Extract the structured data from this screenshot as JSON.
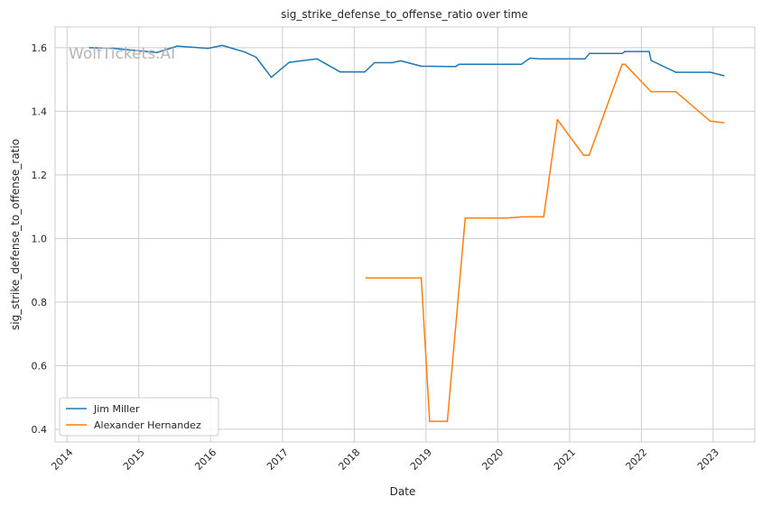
{
  "watermark": "WolfTickets.AI",
  "chart_data": {
    "type": "line",
    "title": "sig_strike_defense_to_offense_ratio over time",
    "xlabel": "Date",
    "ylabel": "sig_strike_defense_to_offense_ratio",
    "xlim": [
      "2013-11-01",
      "2023-08-01"
    ],
    "ylim": [
      0.36,
      1.665
    ],
    "x_ticks": [
      "2014",
      "2015",
      "2016",
      "2017",
      "2018",
      "2019",
      "2020",
      "2021",
      "2022",
      "2023"
    ],
    "y_ticks": [
      0.4,
      0.6,
      0.8,
      1.0,
      1.2,
      1.4,
      1.6
    ],
    "y_tick_labels": [
      "0.4",
      "0.6",
      "0.8",
      "1.0",
      "1.2",
      "1.4",
      "1.6"
    ],
    "grid": true,
    "legend_position": "lower-left",
    "series": [
      {
        "name": "Jim Miller",
        "color": "#1f77b4",
        "points": [
          [
            "2014-04-26",
            1.6
          ],
          [
            "2014-08-23",
            1.598
          ],
          [
            "2015-04-04",
            1.585
          ],
          [
            "2015-07-15",
            1.605
          ],
          [
            "2015-12-19",
            1.598
          ],
          [
            "2016-03-01",
            1.607
          ],
          [
            "2016-06-25",
            1.586
          ],
          [
            "2016-08-20",
            1.57
          ],
          [
            "2016-11-05",
            1.507
          ],
          [
            "2017-02-04",
            1.554
          ],
          [
            "2017-06-25",
            1.565
          ],
          [
            "2017-10-21",
            1.524
          ],
          [
            "2018-02-24",
            1.524
          ],
          [
            "2018-04-14",
            1.553
          ],
          [
            "2018-07-14",
            1.553
          ],
          [
            "2018-08-25",
            1.559
          ],
          [
            "2018-12-08",
            1.542
          ],
          [
            "2019-05-01",
            1.541
          ],
          [
            "2019-06-01",
            1.541
          ],
          [
            "2019-06-20",
            1.548
          ],
          [
            "2020-05-01",
            1.548
          ],
          [
            "2020-06-13",
            1.567
          ],
          [
            "2020-08-01",
            1.565
          ],
          [
            "2021-03-20",
            1.565
          ],
          [
            "2021-04-12",
            1.582
          ],
          [
            "2021-09-25",
            1.582
          ],
          [
            "2021-10-09",
            1.588
          ],
          [
            "2022-02-10",
            1.588
          ],
          [
            "2022-02-19",
            1.56
          ],
          [
            "2022-06-25",
            1.523
          ],
          [
            "2022-12-17",
            1.523
          ],
          [
            "2023-02-25",
            1.512
          ]
        ]
      },
      {
        "name": "Alexander Hernandez",
        "color": "#ff7f0e",
        "points": [
          [
            "2018-03-03",
            0.876
          ],
          [
            "2018-12-08",
            0.876
          ],
          [
            "2019-01-20",
            0.425
          ],
          [
            "2019-04-20",
            0.425
          ],
          [
            "2019-07-20",
            1.064
          ],
          [
            "2020-02-15",
            1.064
          ],
          [
            "2020-05-09",
            1.068
          ],
          [
            "2020-08-22",
            1.068
          ],
          [
            "2020-10-31",
            1.374
          ],
          [
            "2021-03-13",
            1.262
          ],
          [
            "2021-04-10",
            1.262
          ],
          [
            "2021-09-25",
            1.548
          ],
          [
            "2021-10-09",
            1.548
          ],
          [
            "2022-02-19",
            1.462
          ],
          [
            "2022-06-25",
            1.462
          ],
          [
            "2022-12-17",
            1.369
          ],
          [
            "2023-02-25",
            1.364
          ]
        ]
      }
    ]
  }
}
